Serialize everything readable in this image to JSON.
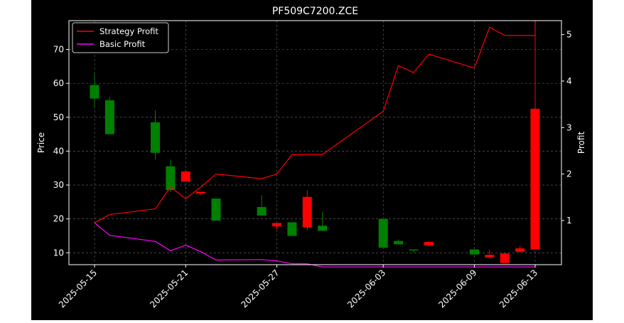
{
  "chart_data": {
    "type": "candlestick",
    "title": "PF509C7200.ZCE",
    "ylabel_left": "Price",
    "ylabel_right": "Profit",
    "xlabel": "",
    "ylim_left": [
      6.5,
      78.5
    ],
    "ylim_right": [
      0.05,
      5.3
    ],
    "yticks_left": [
      10,
      20,
      30,
      40,
      50,
      60,
      70
    ],
    "yticks_right": [
      1,
      2,
      3,
      4,
      5
    ],
    "grid": true,
    "legend_position": "upper-left",
    "x_dates": [
      "2025-05-15",
      "2025-05-16",
      "2025-05-19",
      "2025-05-20",
      "2025-05-21",
      "2025-05-22",
      "2025-05-23",
      "2025-05-26",
      "2025-05-27",
      "2025-05-28",
      "2025-05-29",
      "2025-05-30",
      "2025-06-03",
      "2025-06-04",
      "2025-06-05",
      "2025-06-06",
      "2025-06-09",
      "2025-06-10",
      "2025-06-11",
      "2025-06-12",
      "2025-06-13"
    ],
    "x_tick_labels": [
      "2025-05-15",
      "2025-05-21",
      "2025-05-27",
      "2025-06-03",
      "2025-06-09",
      "2025-06-13"
    ],
    "candles": [
      {
        "date": "2025-05-15",
        "open": 55.5,
        "close": 59.5,
        "high": 63.0,
        "low": 53.0
      },
      {
        "date": "2025-05-16",
        "open": 45.0,
        "close": 55.0,
        "high": 56.0,
        "low": 45.0
      },
      {
        "date": "2025-05-19",
        "open": 39.5,
        "close": 48.5,
        "high": 52.0,
        "low": 37.5
      },
      {
        "date": "2025-05-20",
        "open": 28.5,
        "close": 35.5,
        "high": 37.5,
        "low": 28.0
      },
      {
        "date": "2025-05-21",
        "open": 34.0,
        "close": 31.0,
        "high": 34.5,
        "low": 31.0
      },
      {
        "date": "2025-05-22",
        "open": 28.0,
        "close": 27.5,
        "high": 28.0,
        "low": 27.0
      },
      {
        "date": "2025-05-23",
        "open": 19.5,
        "close": 26.0,
        "high": 26.0,
        "low": 19.5
      },
      {
        "date": "2025-05-26",
        "open": 21.0,
        "close": 23.5,
        "high": 27.0,
        "low": 21.0
      },
      {
        "date": "2025-05-27",
        "open": 18.8,
        "close": 17.8,
        "high": 18.8,
        "low": 17.0
      },
      {
        "date": "2025-05-28",
        "open": 15.0,
        "close": 19.0,
        "high": 19.0,
        "low": 15.0
      },
      {
        "date": "2025-05-29",
        "open": 26.5,
        "close": 17.5,
        "high": 28.5,
        "low": 16.5
      },
      {
        "date": "2025-05-30",
        "open": 16.5,
        "close": 18.0,
        "high": 22.0,
        "low": 16.5
      },
      {
        "date": "2025-06-03",
        "open": 11.5,
        "close": 20.0,
        "high": 20.0,
        "low": 11.5
      },
      {
        "date": "2025-06-04",
        "open": 12.5,
        "close": 13.5,
        "high": 14.0,
        "low": 12.5
      },
      {
        "date": "2025-06-05",
        "open": 11.0,
        "close": 11.0,
        "high": 11.0,
        "low": 10.0
      },
      {
        "date": "2025-06-06",
        "open": 13.2,
        "close": 12.2,
        "high": 13.5,
        "low": 12.0
      },
      {
        "date": "2025-06-09",
        "open": 9.5,
        "close": 11.0,
        "high": 11.0,
        "low": 9.5
      },
      {
        "date": "2025-06-10",
        "open": 9.4,
        "close": 8.6,
        "high": 11.0,
        "low": 8.5
      },
      {
        "date": "2025-06-11",
        "open": 9.8,
        "close": 7.0,
        "high": 9.8,
        "low": 7.0
      },
      {
        "date": "2025-06-12",
        "open": 11.3,
        "close": 10.3,
        "high": 12.0,
        "low": 10.0
      },
      {
        "date": "2025-06-13",
        "open": 52.5,
        "close": 11.0,
        "high": 77.5,
        "low": 11.0
      }
    ],
    "series": [
      {
        "name": "Strategy Profit",
        "color": "#ff0000",
        "axis": "right",
        "values": [
          0.95,
          1.13,
          1.25,
          1.72,
          1.47,
          1.72,
          2.0,
          1.9,
          2.0,
          2.42,
          2.42,
          2.42,
          3.35,
          4.33,
          4.18,
          4.58,
          4.28,
          5.16,
          4.98,
          4.98,
          4.98
        ]
      },
      {
        "name": "Basic Profit",
        "color": "#ff00ff",
        "axis": "right",
        "values": [
          0.95,
          0.68,
          0.55,
          0.35,
          0.47,
          0.33,
          0.15,
          0.16,
          0.13,
          0.07,
          0.07,
          0.0,
          0.0,
          0.0,
          0.0,
          0.0,
          0.0,
          0.0,
          0.0,
          0.0,
          0.0
        ]
      }
    ],
    "colors": {
      "up": "#008000",
      "down": "#ff0000",
      "grid": "#888888",
      "axes": "#ffffff",
      "background": "#000000"
    }
  }
}
